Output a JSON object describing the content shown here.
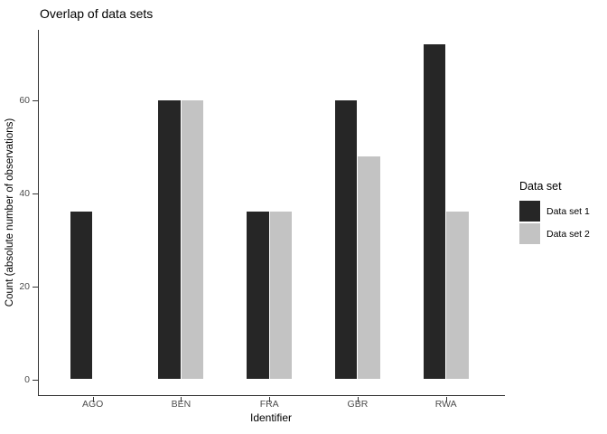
{
  "title": "Overlap of data sets",
  "chart_data": {
    "type": "bar",
    "title": "Overlap of data sets",
    "xlabel": "Identifier",
    "ylabel": "Count (absolute number of observations)",
    "categories": [
      "AGO",
      "BEN",
      "FRA",
      "GBR",
      "RWA"
    ],
    "series": [
      {
        "name": "Data set 1",
        "color": "#262626",
        "values": [
          36,
          60,
          36,
          60,
          72
        ]
      },
      {
        "name": "Data set 2",
        "color": "#c3c3c3",
        "values": [
          null,
          60,
          36,
          48,
          36
        ]
      }
    ],
    "y_ticks": [
      0,
      20,
      40,
      60
    ],
    "ylim": [
      0,
      75.6
    ],
    "grid": false,
    "bar_layout": "dodged",
    "legend_position": "right"
  },
  "legend": {
    "title": "Data set",
    "items": [
      {
        "label": "Data set 1",
        "color": "#262626"
      },
      {
        "label": "Data set 2",
        "color": "#c3c3c3"
      }
    ]
  }
}
